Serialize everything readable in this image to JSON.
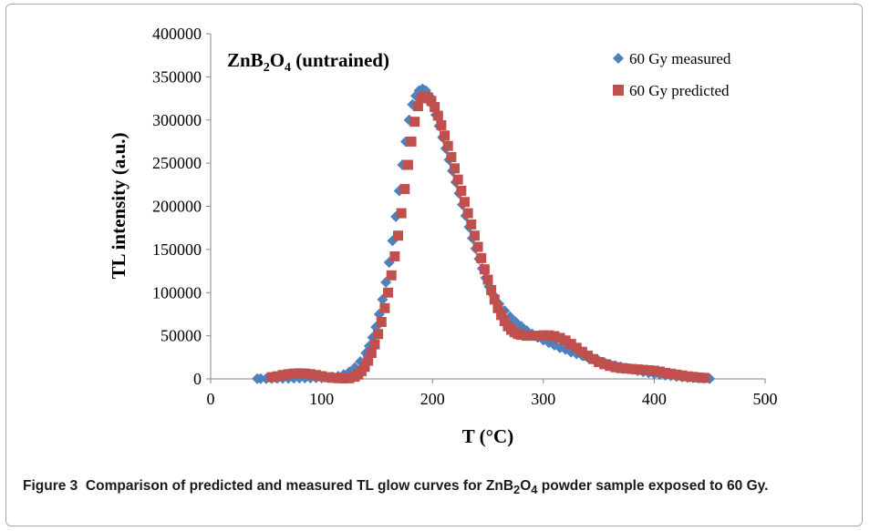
{
  "chart_data": {
    "type": "scatter",
    "title_parts": {
      "base": "ZnB",
      "sub1": "2",
      "mid": "O",
      "sub2": "4",
      "suffix": " (untrained)"
    },
    "xlabel": "T (°C)",
    "ylabel": "TL intensity (a.u.)",
    "xlim": [
      0,
      500
    ],
    "ylim": [
      0,
      400000
    ],
    "x_ticks": [
      "0",
      "100",
      "200",
      "300",
      "400",
      "500"
    ],
    "y_ticks": [
      "0",
      "50000",
      "100000",
      "150000",
      "200000",
      "250000",
      "300000",
      "350000",
      "400000"
    ],
    "grid": false,
    "legend_position": "top-right",
    "series": [
      {
        "name": "60 Gy measured",
        "marker": "diamond",
        "color": "#4f81bd",
        "x": [
          42,
          45,
          50,
          55,
          60,
          65,
          70,
          75,
          80,
          85,
          90,
          95,
          100,
          105,
          110,
          115,
          120,
          125,
          130,
          135,
          140,
          143,
          146,
          149,
          152,
          155,
          158,
          161,
          164,
          167,
          170,
          173,
          176,
          179,
          182,
          185,
          188,
          191,
          194,
          197,
          200,
          203,
          206,
          209,
          212,
          215,
          218,
          221,
          224,
          227,
          230,
          233,
          236,
          239,
          242,
          245,
          248,
          251,
          255,
          260,
          265,
          270,
          275,
          280,
          285,
          290,
          295,
          300,
          305,
          310,
          315,
          320,
          325,
          330,
          335,
          340,
          345,
          350,
          355,
          360,
          365,
          370,
          375,
          380,
          385,
          390,
          395,
          400,
          405,
          410,
          415,
          420,
          425,
          430,
          435,
          440,
          445,
          450
        ],
        "y": [
          200,
          200,
          300,
          400,
          500,
          600,
          700,
          800,
          900,
          1000,
          1100,
          1200,
          1400,
          1700,
          2200,
          3200,
          5000,
          8000,
          13000,
          20000,
          30000,
          38000,
          48000,
          60000,
          75000,
          92000,
          112000,
          135000,
          160000,
          188000,
          218000,
          248000,
          275000,
          300000,
          318000,
          328000,
          334000,
          336000,
          334000,
          328000,
          318000,
          306000,
          293000,
          280000,
          267000,
          254000,
          241000,
          228000,
          215000,
          202000,
          189000,
          176000,
          163000,
          151000,
          139000,
          128000,
          117000,
          107000,
          97000,
          87000,
          79000,
          72000,
          66000,
          61000,
          56000,
          52000,
          48000,
          45000,
          42000,
          39000,
          36000,
          34000,
          31000,
          29000,
          27000,
          25000,
          23000,
          21000,
          19000,
          17000,
          15500,
          14000,
          12500,
          11000,
          9500,
          8200,
          7000,
          6000,
          5000,
          4200,
          3500,
          2800,
          2200,
          1700,
          1300,
          900,
          600,
          300
        ]
      },
      {
        "name": "60 Gy predicted",
        "marker": "square",
        "color": "#c0504d",
        "x": [
          55,
          60,
          65,
          70,
          75,
          80,
          85,
          90,
          95,
          100,
          105,
          110,
          115,
          120,
          125,
          130,
          133,
          136,
          139,
          142,
          145,
          148,
          151,
          154,
          157,
          160,
          163,
          166,
          169,
          172,
          175,
          178,
          181,
          184,
          187,
          190,
          193,
          196,
          199,
          202,
          205,
          208,
          211,
          214,
          217,
          220,
          223,
          226,
          229,
          232,
          235,
          238,
          241,
          244,
          247,
          250,
          253,
          256,
          259,
          262,
          265,
          268,
          271,
          274,
          277,
          280,
          285,
          290,
          295,
          300,
          305,
          310,
          315,
          320,
          325,
          330,
          335,
          340,
          345,
          350,
          355,
          360,
          365,
          370,
          375,
          380,
          385,
          390,
          395,
          400,
          405,
          410,
          415,
          420,
          425,
          430,
          435,
          440,
          445
        ],
        "y": [
          2000,
          3000,
          4500,
          5500,
          6200,
          6500,
          6200,
          5500,
          4500,
          3200,
          2000,
          1200,
          800,
          600,
          800,
          2500,
          5000,
          9000,
          14000,
          21000,
          30000,
          40000,
          52000,
          66000,
          82000,
          100000,
          120000,
          142000,
          166000,
          192000,
          220000,
          248000,
          275000,
          298000,
          316000,
          325000,
          327000,
          326000,
          322000,
          315000,
          305000,
          294000,
          282000,
          270000,
          257000,
          244000,
          231000,
          218000,
          205000,
          192000,
          179000,
          166000,
          153000,
          140000,
          127000,
          115000,
          103000,
          92000,
          82000,
          74000,
          67000,
          61000,
          57000,
          54000,
          52000,
          51000,
          50000,
          50000,
          50000,
          50500,
          50500,
          49500,
          47500,
          44500,
          40500,
          36000,
          31500,
          27000,
          23000,
          19500,
          17000,
          15000,
          13500,
          12500,
          12000,
          11500,
          11000,
          10500,
          10000,
          9500,
          8500,
          7000,
          6000,
          5000,
          4000,
          3000,
          2300,
          1700,
          1200
        ]
      }
    ]
  },
  "caption": {
    "label": "Figure 3",
    "text_before": "Comparison of predicted and measured TL glow curves for ZnB",
    "sub1": "2",
    "mid": "O",
    "sub2": "4",
    "text_after": " powder sample exposed to 60 Gy."
  }
}
